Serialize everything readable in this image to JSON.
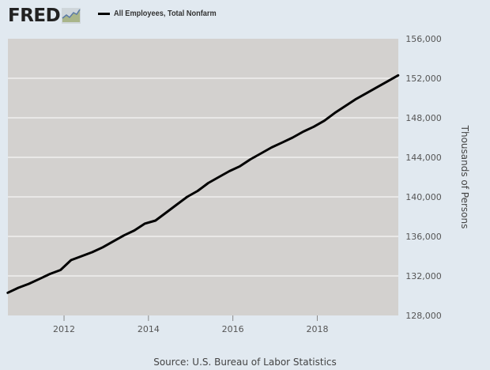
{
  "header": {
    "logo_text": "FRED",
    "logo_icon": "line-chart-icon",
    "legend_label": "All Employees, Total Nonfarm",
    "legend_color": "#000000"
  },
  "chart_data": {
    "type": "line",
    "title": "",
    "xlabel": "",
    "ylabel": "Thousands of Persons",
    "ylim": [
      128000,
      156000
    ],
    "xlim": [
      2010.67,
      2019.92
    ],
    "y_ticks": [
      128000,
      132000,
      136000,
      140000,
      144000,
      148000,
      152000,
      156000
    ],
    "y_tick_labels": [
      "128,000",
      "132,000",
      "136,000",
      "140,000",
      "144,000",
      "148,000",
      "152,000",
      "156,000"
    ],
    "x_ticks": [
      2012,
      2014,
      2016,
      2018
    ],
    "x_tick_labels": [
      "2012",
      "2014",
      "2016",
      "2018"
    ],
    "y_axis_position": "right",
    "grid": true,
    "legend_position": "top",
    "plot_background": "#d3d1cf",
    "series": [
      {
        "name": "All Employees, Total Nonfarm",
        "color": "#000000",
        "x": [
          "2010-09",
          "2010-12",
          "2011-03",
          "2011-06",
          "2011-09",
          "2011-12",
          "2012-03",
          "2012-06",
          "2012-09",
          "2012-12",
          "2013-03",
          "2013-06",
          "2013-09",
          "2013-12",
          "2014-03",
          "2014-06",
          "2014-09",
          "2014-12",
          "2015-03",
          "2015-06",
          "2015-09",
          "2015-12",
          "2016-03",
          "2016-06",
          "2016-09",
          "2016-12",
          "2017-03",
          "2017-06",
          "2017-09",
          "2017-12",
          "2018-03",
          "2018-06",
          "2018-09",
          "2018-12",
          "2019-03",
          "2019-06",
          "2019-09",
          "2019-12"
        ],
        "values": [
          130300,
          130800,
          131200,
          131700,
          132200,
          132600,
          133600,
          134000,
          134400,
          134900,
          135500,
          136100,
          136600,
          137300,
          137600,
          138400,
          139200,
          140000,
          140600,
          141400,
          142000,
          142600,
          143100,
          143800,
          144400,
          145000,
          145500,
          146000,
          146600,
          147100,
          147700,
          148500,
          149200,
          149900,
          150500,
          151100,
          151700,
          152300
        ]
      }
    ]
  },
  "footer": {
    "source": "Source: U.S. Bureau of Labor Statistics"
  }
}
